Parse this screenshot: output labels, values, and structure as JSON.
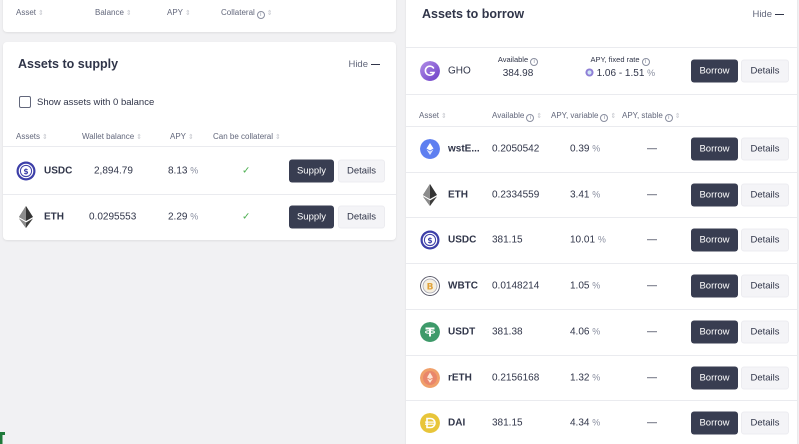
{
  "positions_header": {
    "columns": [
      {
        "label": "Asset",
        "sortable": true
      },
      {
        "label": "Balance",
        "sortable": true
      },
      {
        "label": "APY",
        "sortable": true
      },
      {
        "label": "Collateral",
        "sortable": true,
        "info": true
      }
    ]
  },
  "supply": {
    "title": "Assets to supply",
    "hide_label": "Hide",
    "show_zero_label": "Show assets with 0 balance",
    "show_zero_checked": false,
    "columns": [
      {
        "label": "Assets"
      },
      {
        "label": "Wallet balance"
      },
      {
        "label": "APY"
      },
      {
        "label": "Can be collateral"
      }
    ],
    "rows": [
      {
        "symbol": "USDC",
        "icon": "usdc-icon",
        "balance": "2,894.79",
        "apy": "8.13",
        "collateral": true,
        "supply_label": "Supply",
        "details_label": "Details"
      },
      {
        "symbol": "ETH",
        "icon": "eth-icon",
        "balance": "0.0295553",
        "apy": "2.29",
        "collateral": true,
        "supply_label": "Supply",
        "details_label": "Details"
      }
    ]
  },
  "borrow": {
    "title": "Assets to borrow",
    "hide_label": "Hide",
    "gho": {
      "symbol": "GHO",
      "available_label": "Available",
      "available": "384.98",
      "apy_label": "APY, fixed rate",
      "apy_range": "1.06 - 1.51",
      "borrow_label": "Borrow",
      "details_label": "Details"
    },
    "columns": [
      {
        "label": "Asset"
      },
      {
        "label": "Available"
      },
      {
        "label": "APY, variable"
      },
      {
        "label": "APY, stable"
      }
    ],
    "rows": [
      {
        "symbol": "wstE...",
        "icon": "wsteth-icon",
        "available": "0.2050542",
        "apy_variable": "0.39",
        "apy_stable": "—"
      },
      {
        "symbol": "ETH",
        "icon": "eth-icon",
        "available": "0.2334559",
        "apy_variable": "3.41",
        "apy_stable": "—"
      },
      {
        "symbol": "USDC",
        "icon": "usdc-icon",
        "available": "381.15",
        "apy_variable": "10.01",
        "apy_stable": "—"
      },
      {
        "symbol": "WBTC",
        "icon": "wbtc-icon",
        "available": "0.0148214",
        "apy_variable": "1.05",
        "apy_stable": "—"
      },
      {
        "symbol": "USDT",
        "icon": "usdt-icon",
        "available": "381.38",
        "apy_variable": "4.06",
        "apy_stable": "—"
      },
      {
        "symbol": "rETH",
        "icon": "reth-icon",
        "available": "0.2156168",
        "apy_variable": "1.32",
        "apy_stable": "—"
      },
      {
        "symbol": "DAI",
        "icon": "dai-icon",
        "available": "381.15",
        "apy_variable": "4.34",
        "apy_stable": "—"
      }
    ],
    "borrow_label": "Borrow",
    "details_label": "Details"
  },
  "common": {
    "percent": "%",
    "sort_glyph": "⇕",
    "info_glyph": "i",
    "check_glyph": "✓"
  },
  "colors": {
    "page_bg": "#f1f1f3",
    "card_bg": "#ffffff",
    "primary_button": "#383d51",
    "secondary_button": "#f4f4f7",
    "check_green": "#4caf50",
    "text_primary": "#303549",
    "text_secondary": "#62677b"
  }
}
